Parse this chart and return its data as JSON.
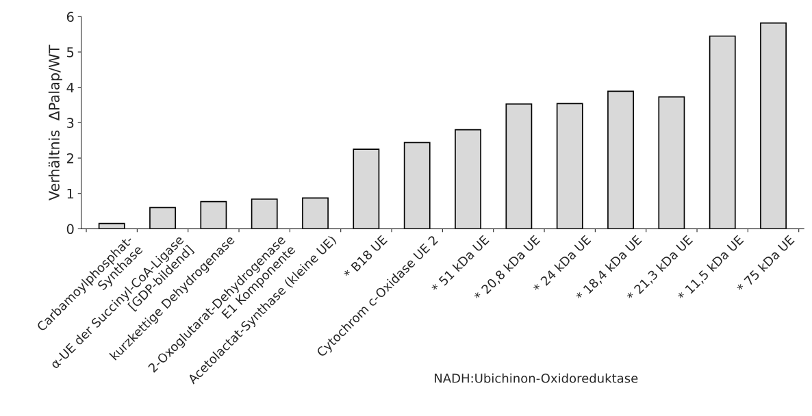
{
  "chart_data": {
    "type": "bar",
    "categories": [
      "Carbamoylphosphat-\nSynthase",
      "α-UE der Succinyl-CoA-Ligase\n[GDP-bildend]",
      "kurzkettige Dehydrogenase",
      "2-Oxoglutarat-Dehydrogenase\nE1 Komponente",
      "Acetolactat-Synthase (kleine UE)",
      "* B18 UE",
      "Cytochrom c-Oxidase UE 2",
      "* 51 kDa UE",
      "* 20,8 kDa UE",
      "* 24 kDa UE",
      "* 18,4 kDa UE",
      "* 21,3 kDa UE",
      "* 11,5 kDa UE",
      "* 75 kDa UE"
    ],
    "values": [
      0.15,
      0.6,
      0.77,
      0.84,
      0.87,
      2.25,
      2.44,
      2.8,
      3.53,
      3.54,
      3.89,
      3.73,
      5.45,
      5.82
    ],
    "color": "#d9d9d9",
    "ylabel": "Verhältnis  ΔPalap/WT",
    "ylim": [
      0,
      6
    ],
    "yticks": [
      0,
      1,
      2,
      3,
      4,
      5,
      6
    ],
    "grid": false,
    "legend": false,
    "annotations": [
      "NADH:Ubichinon-Oxidoreduktase"
    ]
  }
}
